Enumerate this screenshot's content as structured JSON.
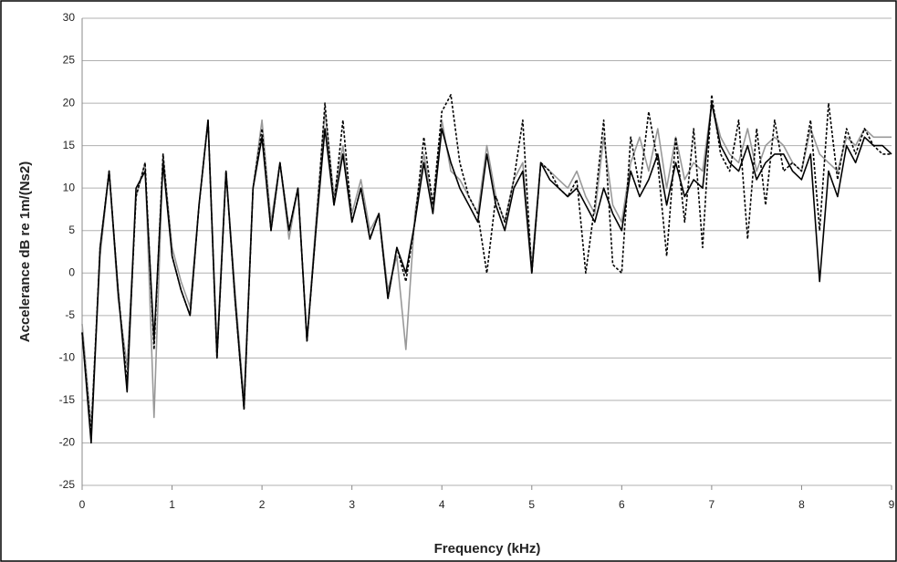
{
  "chart_data": {
    "type": "line",
    "xlabel": "Frequency (kHz)",
    "ylabel": "Accelerance dB re 1m/(Ns2)",
    "x": [
      0,
      0.1,
      0.2,
      0.3,
      0.4,
      0.5,
      0.6,
      0.7,
      0.8,
      0.9,
      1,
      1.1,
      1.2,
      1.3,
      1.4,
      1.5,
      1.6,
      1.7,
      1.8,
      1.9,
      2,
      2.1,
      2.2,
      2.3,
      2.4,
      2.5,
      2.6,
      2.7,
      2.8,
      2.9,
      3,
      3.1,
      3.2,
      3.3,
      3.4,
      3.5,
      3.6,
      3.7,
      3.8,
      3.9,
      4,
      4.1,
      4.2,
      4.3,
      4.4,
      4.5,
      4.6,
      4.7,
      4.8,
      4.9,
      5,
      5.1,
      5.2,
      5.3,
      5.4,
      5.5,
      5.6,
      5.7,
      5.8,
      5.9,
      6,
      6.1,
      6.2,
      6.3,
      6.4,
      6.5,
      6.6,
      6.7,
      6.8,
      6.9,
      7,
      7.1,
      7.2,
      7.3,
      7.4,
      7.5,
      7.6,
      7.7,
      7.8,
      7.9,
      8,
      8.1,
      8.2,
      8.3,
      8.4,
      8.5,
      8.6,
      8.7,
      8.8,
      8.9,
      9
    ],
    "series": [
      {
        "color": "#999999",
        "dash": false,
        "values": [
          -6,
          -18,
          2,
          12,
          -3,
          -11,
          9,
          13,
          -17,
          14,
          3,
          -1,
          -4,
          8,
          18,
          -9,
          12,
          -2,
          -15,
          10,
          18,
          6,
          13,
          4,
          10,
          -8,
          6,
          19,
          9,
          15,
          7,
          11,
          5,
          7,
          -2,
          2,
          -9,
          7,
          14,
          8,
          18,
          12,
          11,
          9,
          7,
          15,
          9,
          6,
          11,
          13,
          1,
          13,
          12,
          11,
          10,
          12,
          9,
          7,
          16,
          8,
          6,
          13,
          16,
          12,
          17,
          10,
          16,
          11,
          13,
          12,
          20,
          16,
          14,
          13,
          17,
          12,
          15,
          16,
          15,
          13,
          12,
          17,
          14,
          13,
          12,
          16,
          15,
          17,
          16,
          16,
          16
        ]
      },
      {
        "color": "#000000",
        "dash": true,
        "values": [
          -7,
          -19,
          3,
          12,
          -2,
          -13,
          9,
          13,
          -9,
          14,
          2,
          -2,
          -5,
          8,
          18,
          -10,
          12,
          -3,
          -16,
          10,
          17,
          5,
          13,
          5,
          10,
          -8,
          5,
          20,
          8,
          18,
          6,
          10,
          4,
          7,
          -3,
          3,
          -1,
          6,
          16,
          8,
          19,
          21,
          13,
          9,
          7,
          0,
          9,
          6,
          11,
          18,
          0,
          13,
          12,
          10,
          9,
          11,
          0,
          8,
          18,
          1,
          0,
          16,
          10,
          19,
          13,
          2,
          16,
          6,
          17,
          3,
          21,
          14,
          12,
          18,
          4,
          17,
          8,
          18,
          12,
          13,
          12,
          18,
          5,
          20,
          11,
          17,
          14,
          17,
          15,
          14,
          14
        ]
      },
      {
        "color": "#000000",
        "dash": false,
        "values": [
          -7,
          -20,
          3,
          12,
          -2,
          -14,
          10,
          12,
          -8,
          13,
          2,
          -2,
          -5,
          8,
          18,
          -10,
          12,
          -3,
          -16,
          10,
          16,
          5,
          13,
          5,
          10,
          -8,
          5,
          17,
          8,
          14,
          6,
          10,
          4,
          7,
          -3,
          3,
          0,
          6,
          13,
          7,
          17,
          13,
          10,
          8,
          6,
          14,
          8,
          5,
          10,
          12,
          0,
          13,
          11,
          10,
          9,
          10,
          8,
          6,
          10,
          7,
          5,
          12,
          9,
          11,
          14,
          8,
          13,
          9,
          11,
          10,
          20,
          15,
          13,
          12,
          15,
          11,
          13,
          14,
          14,
          12,
          11,
          14,
          -1,
          12,
          9,
          15,
          13,
          16,
          15,
          15,
          14
        ]
      }
    ],
    "xlim": [
      0,
      9
    ],
    "xticks": [
      0,
      1,
      2,
      3,
      4,
      5,
      6,
      7,
      8,
      9
    ],
    "ylim": [
      -25,
      30
    ],
    "yticks": [
      -25,
      -20,
      -15,
      -10,
      -5,
      0,
      5,
      10,
      15,
      20,
      25,
      30
    ],
    "grid": true
  }
}
